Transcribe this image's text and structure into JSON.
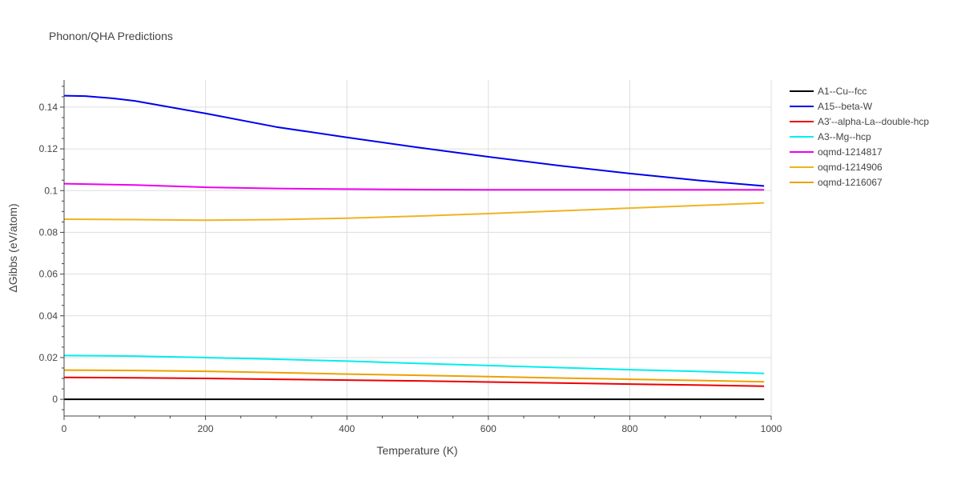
{
  "chart_data": {
    "type": "line",
    "title": "Phonon/QHA Predictions",
    "xlabel": "Temperature (K)",
    "ylabel": "ΔGibbs (eV/atom)",
    "xlim": [
      0,
      1000
    ],
    "ylim": [
      -0.008,
      0.153
    ],
    "xticks": [
      0,
      200,
      400,
      600,
      800,
      1000
    ],
    "xtick_labels": [
      "0",
      "200",
      "400",
      "600",
      "800",
      "1000"
    ],
    "yticks": [
      0,
      0.02,
      0.04,
      0.06,
      0.08,
      0.1,
      0.12,
      0.14
    ],
    "ytick_labels": [
      "0",
      "0.02",
      "0.04",
      "0.06",
      "0.08",
      "0.1",
      "0.12",
      "0.14"
    ],
    "grid": true,
    "legend_position": "right",
    "series": [
      {
        "name": "A1--Cu--fcc",
        "color": "#000000",
        "x": [
          0,
          990
        ],
        "y": [
          0.0,
          0.0
        ]
      },
      {
        "name": "A15--beta-W",
        "color": "#0000ee",
        "x": [
          0,
          30,
          70,
          100,
          200,
          300,
          400,
          500,
          600,
          700,
          800,
          900,
          990
        ],
        "y": [
          0.1455,
          0.1453,
          0.1442,
          0.143,
          0.137,
          0.1305,
          0.1255,
          0.1207,
          0.1162,
          0.112,
          0.1082,
          0.1048,
          0.1022
        ]
      },
      {
        "name": "A3'--alpha-La--double-hcp",
        "color": "#ee0000",
        "x": [
          0,
          100,
          200,
          300,
          400,
          500,
          600,
          700,
          800,
          900,
          990
        ],
        "y": [
          0.0105,
          0.0103,
          0.01,
          0.0096,
          0.0092,
          0.0088,
          0.0083,
          0.0078,
          0.0073,
          0.0068,
          0.0063
        ]
      },
      {
        "name": "A3--Mg--hcp",
        "color": "#00eeee",
        "x": [
          0,
          100,
          200,
          300,
          400,
          500,
          600,
          700,
          800,
          900,
          990
        ],
        "y": [
          0.021,
          0.0207,
          0.02,
          0.0192,
          0.0183,
          0.0172,
          0.0162,
          0.0152,
          0.0142,
          0.0133,
          0.0124
        ]
      },
      {
        "name": "oqmd-1214817",
        "color": "#ee00ee",
        "x": [
          0,
          100,
          200,
          300,
          400,
          500,
          600,
          700,
          800,
          900,
          990
        ],
        "y": [
          0.1033,
          0.1027,
          0.1016,
          0.101,
          0.1007,
          0.1005,
          0.1004,
          0.1004,
          0.1004,
          0.1004,
          0.1004
        ]
      },
      {
        "name": "oqmd-1214906",
        "color": "#eeb422",
        "x": [
          0,
          100,
          200,
          300,
          400,
          500,
          600,
          700,
          800,
          900,
          990
        ],
        "y": [
          0.0863,
          0.0861,
          0.0858,
          0.0861,
          0.0868,
          0.0878,
          0.089,
          0.0903,
          0.0916,
          0.0929,
          0.0941
        ]
      },
      {
        "name": "oqmd-1216067",
        "color": "#eea000",
        "x": [
          0,
          100,
          200,
          300,
          400,
          500,
          600,
          700,
          800,
          900,
          990
        ],
        "y": [
          0.014,
          0.0138,
          0.0134,
          0.0128,
          0.0121,
          0.0115,
          0.0109,
          0.0102,
          0.0096,
          0.009,
          0.0084
        ]
      }
    ]
  }
}
